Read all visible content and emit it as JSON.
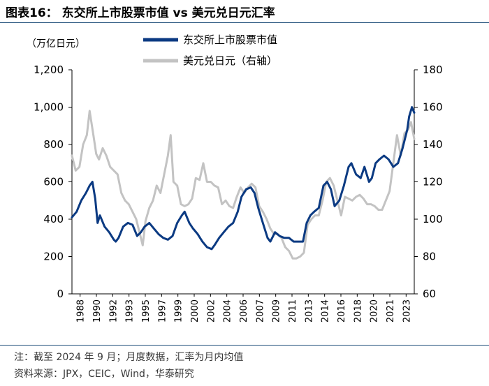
{
  "header": {
    "title": "图表16： 东交所上市股票市值 vs 美元兑日元汇率"
  },
  "footer": {
    "note": "注：截至 2024 年 9 月；月度数据，汇率为月内均值",
    "source": "资料来源：JPX，CEIC，Wind，华泰研究"
  },
  "colors": {
    "series_left": "#0b3a82",
    "series_right": "#c3c3c3",
    "axis": "#000000",
    "rule": "#1f4e79"
  },
  "chart_data": {
    "type": "line",
    "title": "东交所上市股票市值 vs 美元兑日元汇率",
    "unit_label": "（万亿日元）",
    "ylim_left": [
      0,
      1200
    ],
    "ylim_right": [
      60,
      180
    ],
    "yticks_left": [
      "0",
      "200",
      "400",
      "600",
      "800",
      "1,000",
      "1,200"
    ],
    "yticks_right": [
      "60",
      "80",
      "100",
      "120",
      "140",
      "160",
      "180"
    ],
    "xlim": [
      1988,
      2024.75
    ],
    "xticks": [
      "1988",
      "1990",
      "1992",
      "1993",
      "1995",
      "1997",
      "1999",
      "2000",
      "2002",
      "2004",
      "2006",
      "2007",
      "2009",
      "2011",
      "2013",
      "2014",
      "2016",
      "2018",
      "2020",
      "2021",
      "2023"
    ],
    "grid": false,
    "legend_position": "top-center",
    "series": [
      {
        "name": "东交所上市股票市值",
        "axis": "left",
        "x": [
          1988.0,
          1988.5,
          1989.0,
          1989.5,
          1989.9,
          1990.2,
          1990.5,
          1990.75,
          1991.0,
          1991.5,
          1992.0,
          1992.5,
          1992.7,
          1993.0,
          1993.5,
          1994.0,
          1994.5,
          1995.0,
          1995.4,
          1995.8,
          1996.3,
          1996.8,
          1997.3,
          1997.8,
          1998.3,
          1998.8,
          1999.3,
          1999.8,
          2000.1,
          2000.6,
          2001.0,
          2001.5,
          2002.0,
          2002.5,
          2003.0,
          2003.3,
          2003.8,
          2004.3,
          2004.8,
          2005.3,
          2005.8,
          2006.2,
          2006.7,
          2007.2,
          2007.6,
          2008.0,
          2008.5,
          2009.0,
          2009.3,
          2009.8,
          2010.3,
          2010.8,
          2011.3,
          2011.8,
          2012.3,
          2012.8,
          2013.2,
          2013.6,
          2014.0,
          2014.5,
          2015.0,
          2015.4,
          2015.8,
          2016.2,
          2016.7,
          2017.2,
          2017.7,
          2018.0,
          2018.5,
          2019.0,
          2019.4,
          2019.9,
          2020.2,
          2020.6,
          2021.0,
          2021.5,
          2022.0,
          2022.5,
          2023.0,
          2023.5,
          2024.0,
          2024.2,
          2024.5,
          2024.75
        ],
        "values": [
          410,
          440,
          500,
          540,
          580,
          600,
          510,
          380,
          420,
          360,
          330,
          290,
          280,
          300,
          360,
          380,
          370,
          310,
          330,
          360,
          380,
          350,
          320,
          300,
          290,
          310,
          380,
          420,
          440,
          380,
          350,
          320,
          280,
          250,
          240,
          260,
          300,
          330,
          360,
          380,
          440,
          520,
          560,
          570,
          540,
          460,
          380,
          300,
          280,
          330,
          310,
          300,
          300,
          280,
          280,
          280,
          380,
          420,
          440,
          460,
          580,
          600,
          560,
          470,
          500,
          580,
          680,
          700,
          640,
          620,
          680,
          600,
          620,
          700,
          720,
          740,
          720,
          680,
          700,
          780,
          880,
          950,
          1000,
          970
        ]
      },
      {
        "name": "美元兑日元（右轴）",
        "axis": "right",
        "x": [
          1988.0,
          1988.4,
          1988.8,
          1989.2,
          1989.6,
          1989.9,
          1990.3,
          1990.6,
          1990.9,
          1991.3,
          1991.7,
          1992.1,
          1992.5,
          1992.9,
          1993.3,
          1993.7,
          1994.1,
          1994.5,
          1994.9,
          1995.3,
          1995.6,
          1995.9,
          1996.3,
          1996.7,
          1997.1,
          1997.5,
          1997.9,
          1998.3,
          1998.6,
          1998.9,
          1999.3,
          1999.7,
          2000.1,
          2000.5,
          2000.9,
          2001.3,
          2001.7,
          2002.1,
          2002.5,
          2002.9,
          2003.3,
          2003.7,
          2004.1,
          2004.5,
          2004.9,
          2005.3,
          2005.7,
          2006.1,
          2006.5,
          2006.9,
          2007.3,
          2007.7,
          2008.1,
          2008.5,
          2008.9,
          2009.3,
          2009.7,
          2010.1,
          2010.5,
          2010.9,
          2011.3,
          2011.7,
          2012.1,
          2012.5,
          2012.9,
          2013.3,
          2013.7,
          2014.1,
          2014.5,
          2014.9,
          2015.3,
          2015.7,
          2016.1,
          2016.5,
          2016.9,
          2017.3,
          2017.7,
          2018.1,
          2018.5,
          2018.9,
          2019.3,
          2019.7,
          2020.1,
          2020.5,
          2020.9,
          2021.3,
          2021.7,
          2022.1,
          2022.5,
          2022.9,
          2023.3,
          2023.7,
          2024.1,
          2024.4,
          2024.75
        ],
        "values": [
          134,
          126,
          128,
          140,
          145,
          158,
          145,
          135,
          132,
          138,
          134,
          128,
          126,
          124,
          114,
          110,
          108,
          104,
          100,
          92,
          86,
          99,
          106,
          110,
          118,
          114,
          124,
          134,
          145,
          120,
          118,
          108,
          107,
          108,
          111,
          122,
          121,
          130,
          120,
          120,
          118,
          117,
          108,
          110,
          107,
          106,
          112,
          117,
          114,
          117,
          119,
          117,
          107,
          104,
          100,
          95,
          92,
          92,
          90,
          85,
          83,
          79,
          79,
          80,
          82,
          97,
          100,
          102,
          102,
          110,
          120,
          122,
          118,
          110,
          102,
          112,
          111,
          110,
          112,
          113,
          111,
          108,
          108,
          107,
          105,
          105,
          110,
          115,
          130,
          145,
          134,
          146,
          148,
          152,
          143
        ]
      }
    ]
  }
}
